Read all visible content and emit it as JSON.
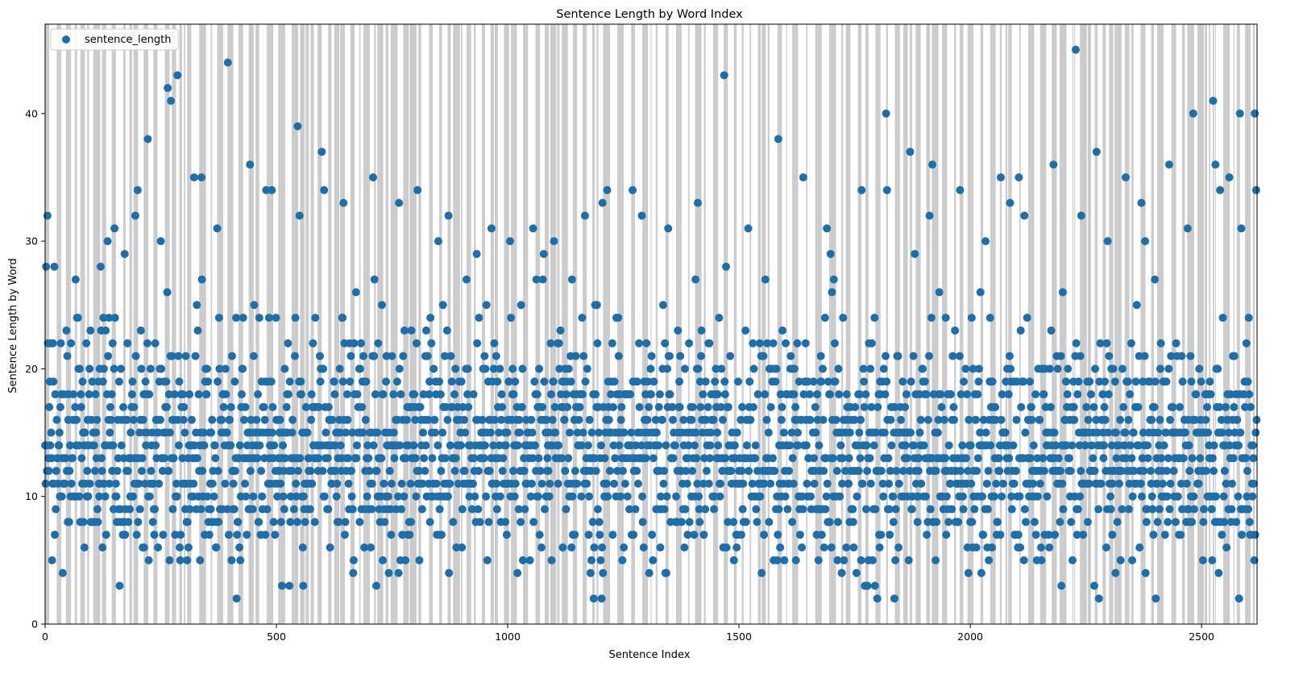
{
  "chart_data": {
    "type": "scatter",
    "title": "Sentence Length by Word Index",
    "xlabel": "Sentence Index",
    "ylabel": "Sentence Length by Word",
    "xlim": [
      0,
      2620
    ],
    "ylim": [
      0,
      47
    ],
    "xticks": [
      0,
      500,
      1000,
      1500,
      2000,
      2500
    ],
    "yticks": [
      0,
      10,
      20,
      30,
      40
    ],
    "grid": false,
    "legend_position": "top-left",
    "band_color": "#cccccc",
    "marker_color": "#1f6ea7",
    "series": [
      {
        "name": "sentence_length",
        "num_points": 2620,
        "seed": 20240611,
        "min": 2,
        "max": 45,
        "highlights": [
          [
            2,
            28
          ],
          [
            5,
            32
          ],
          [
            12,
            22
          ],
          [
            20,
            28
          ],
          [
            120,
            28
          ],
          [
            135,
            30
          ],
          [
            150,
            31
          ],
          [
            172,
            29
          ],
          [
            195,
            32
          ],
          [
            200,
            34
          ],
          [
            222,
            38
          ],
          [
            250,
            30
          ],
          [
            265,
            42
          ],
          [
            272,
            41
          ],
          [
            286,
            43
          ],
          [
            322,
            35
          ],
          [
            338,
            35
          ],
          [
            372,
            31
          ],
          [
            395,
            44
          ],
          [
            443,
            36
          ],
          [
            478,
            34
          ],
          [
            490,
            34
          ],
          [
            546,
            39
          ],
          [
            550,
            32
          ],
          [
            598,
            37
          ],
          [
            603,
            34
          ],
          [
            645,
            33
          ],
          [
            709,
            35
          ],
          [
            712,
            27
          ],
          [
            765,
            33
          ],
          [
            805,
            34
          ],
          [
            850,
            30
          ],
          [
            872,
            32
          ],
          [
            933,
            29
          ],
          [
            965,
            31
          ],
          [
            1005,
            30
          ],
          [
            1055,
            31
          ],
          [
            1078,
            29
          ],
          [
            1100,
            30
          ],
          [
            1167,
            32
          ],
          [
            1205,
            33
          ],
          [
            1215,
            34
          ],
          [
            1270,
            34
          ],
          [
            1290,
            32
          ],
          [
            1347,
            31
          ],
          [
            1411,
            33
          ],
          [
            1468,
            43
          ],
          [
            1472,
            28
          ],
          [
            1520,
            31
          ],
          [
            1557,
            27
          ],
          [
            1585,
            38
          ],
          [
            1639,
            35
          ],
          [
            1690,
            31
          ],
          [
            1698,
            29
          ],
          [
            1765,
            34
          ],
          [
            1818,
            40
          ],
          [
            1820,
            34
          ],
          [
            1870,
            37
          ],
          [
            1880,
            29
          ],
          [
            1912,
            32
          ],
          [
            1918,
            36
          ],
          [
            1978,
            34
          ],
          [
            2033,
            30
          ],
          [
            2066,
            35
          ],
          [
            2086,
            33
          ],
          [
            2105,
            35
          ],
          [
            2117,
            32
          ],
          [
            2180,
            36
          ],
          [
            2200,
            26
          ],
          [
            2228,
            45
          ],
          [
            2240,
            32
          ],
          [
            2273,
            37
          ],
          [
            2297,
            30
          ],
          [
            2336,
            35
          ],
          [
            2370,
            33
          ],
          [
            2378,
            30
          ],
          [
            2430,
            36
          ],
          [
            2470,
            31
          ],
          [
            2482,
            40
          ],
          [
            2525,
            41
          ],
          [
            2530,
            36
          ],
          [
            2540,
            34
          ],
          [
            2560,
            35
          ],
          [
            2583,
            40
          ],
          [
            2586,
            31
          ],
          [
            2615,
            40
          ],
          [
            2618,
            34
          ]
        ]
      }
    ]
  }
}
